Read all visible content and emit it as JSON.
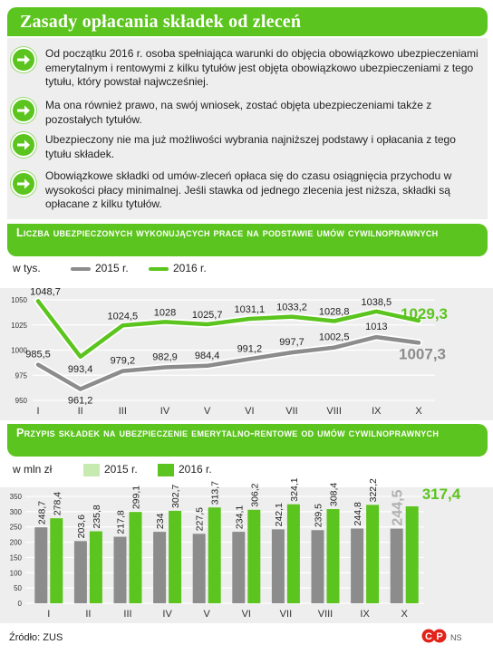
{
  "header": {
    "title": "Zasady opłacania składek od zleceń"
  },
  "bullets": [
    "Od początku 2016 r. osoba spełniająca warunki do objęcia obowiązkowo ubezpieczeniami emerytalnym i rentowymi z kilku tytułów jest objęta obowiązkowo ubezpieczeniami z tego tytułu, który powstał najwcześniej.",
    "Ma ona również prawo, na swój wniosek, zostać objęta ubezpieczeniami także z pozostałych tytułów.",
    "Ubezpieczony nie ma już możliwości wybrania najniższej podstawy i opłacania z tego tytułu składek.",
    "Obowiązkowe składki od umów-zleceń opłaca się do czasu osiągnięcia przychodu w wysokości płacy minimalnej. Jeśli stawka od jednego zlecenia jest niższa, składki są opłacane z kilku tytułów."
  ],
  "colors": {
    "green": "#5cc41e",
    "gray": "#8c8c8c",
    "light_green": "#c6eab0",
    "panel": "#eeeeee"
  },
  "chart_data": [
    {
      "type": "line",
      "title": "Liczba ubezpieczonych wykonujących prace na podstawie umów cywilnoprawnych",
      "unit": "w tys.",
      "categories": [
        "I",
        "II",
        "III",
        "IV",
        "V",
        "VI",
        "VII",
        "VIII",
        "IX",
        "X"
      ],
      "series": [
        {
          "name": "2015 r.",
          "values": [
            985.5,
            961.2,
            979.2,
            982.9,
            984.4,
            991.2,
            997.7,
            1002.5,
            1013,
            1007.3
          ],
          "labels": [
            "985,5",
            "961,2",
            "979,2",
            "982,9",
            "984,4",
            "991,2",
            "997,7",
            "1002,5",
            "1013",
            "1007,3"
          ]
        },
        {
          "name": "2016 r.",
          "values": [
            1048.7,
            993.4,
            1024.5,
            1028,
            1025.7,
            1031.1,
            1033.2,
            1028.8,
            1038.5,
            1029.3
          ],
          "labels": [
            "1048,7",
            "993,4",
            "1024,5",
            "1028",
            "1025,7",
            "1031,1",
            "1033,2",
            "1028,8",
            "1038,5",
            "1029,3"
          ]
        }
      ],
      "yticks": [
        "950",
        "975",
        "1000",
        "1025",
        "1050"
      ],
      "ylim": [
        950,
        1050
      ]
    },
    {
      "type": "bar",
      "title": "Przypis składek na ubezpieczenie emerytalno-rentowe od umów cywilnoprawnych",
      "unit": "w mln zł",
      "categories": [
        "I",
        "II",
        "III",
        "IV",
        "V",
        "VI",
        "VII",
        "VIII",
        "IX",
        "X"
      ],
      "series": [
        {
          "name": "2015 r.",
          "values": [
            248.7,
            203.6,
            217.8,
            234,
            227.5,
            234.1,
            242.1,
            239.5,
            244.8,
            244.5
          ],
          "labels": [
            "248,7",
            "203,6",
            "217,8",
            "234",
            "227,5",
            "234,1",
            "242,1",
            "239,5",
            "244,8",
            "244,5"
          ]
        },
        {
          "name": "2016 r.",
          "values": [
            278.4,
            235.8,
            299.1,
            302.7,
            313.7,
            306.2,
            324.1,
            308.4,
            322.2,
            317.4
          ],
          "labels": [
            "278,4",
            "235,8",
            "299,1",
            "302,7",
            "313,7",
            "306,2",
            "324,1",
            "308,4",
            "322,2",
            "317,4"
          ]
        }
      ],
      "yticks": [
        "0",
        "50",
        "100",
        "150",
        "200",
        "250",
        "300",
        "350"
      ],
      "ylim": [
        0,
        350
      ]
    }
  ],
  "footer": {
    "source": "Źródło: ZUS",
    "logo": "NS"
  }
}
